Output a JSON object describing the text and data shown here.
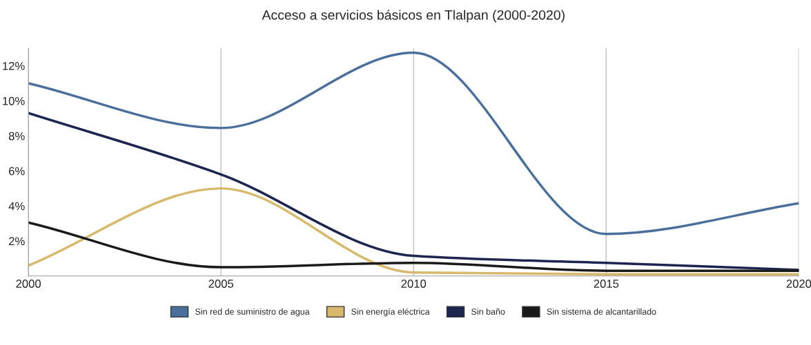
{
  "chart_data": {
    "type": "line",
    "title": "Acceso a servicios básicos en Tlalpan (2000-2020)",
    "x": [
      2000,
      2005,
      2010,
      2015,
      2020
    ],
    "xlim": [
      2000,
      2020
    ],
    "xticks": [
      2000,
      2005,
      2010,
      2015,
      2020
    ],
    "ylim": [
      0,
      13
    ],
    "yticks": [
      {
        "value": 2,
        "label": "2%"
      },
      {
        "value": 4,
        "label": "4%"
      },
      {
        "value": 6,
        "label": "6%"
      },
      {
        "value": 8,
        "label": "8%"
      },
      {
        "value": 10,
        "label": "10%"
      },
      {
        "value": 12,
        "label": "12%"
      }
    ],
    "grid": "x",
    "legend": "bottom",
    "marker": "none",
    "line_style": "solid",
    "series": [
      {
        "name": "Sin red de suministro de agua",
        "color": "#4a6f9c",
        "values": [
          11.0,
          8.45,
          12.75,
          2.4,
          4.15
        ]
      },
      {
        "name": "Sin energía eléctrica",
        "color": "#d8b86a",
        "values": [
          0.6,
          5.0,
          0.2,
          0.1,
          0.1
        ]
      },
      {
        "name": "Sin baño",
        "color": "#1b2550",
        "values": [
          9.3,
          5.8,
          1.15,
          0.75,
          0.35
        ]
      },
      {
        "name": "Sin sistema de alcantarillado",
        "color": "#1a1a1a",
        "values": [
          3.05,
          0.5,
          0.75,
          0.3,
          0.3
        ]
      }
    ]
  }
}
